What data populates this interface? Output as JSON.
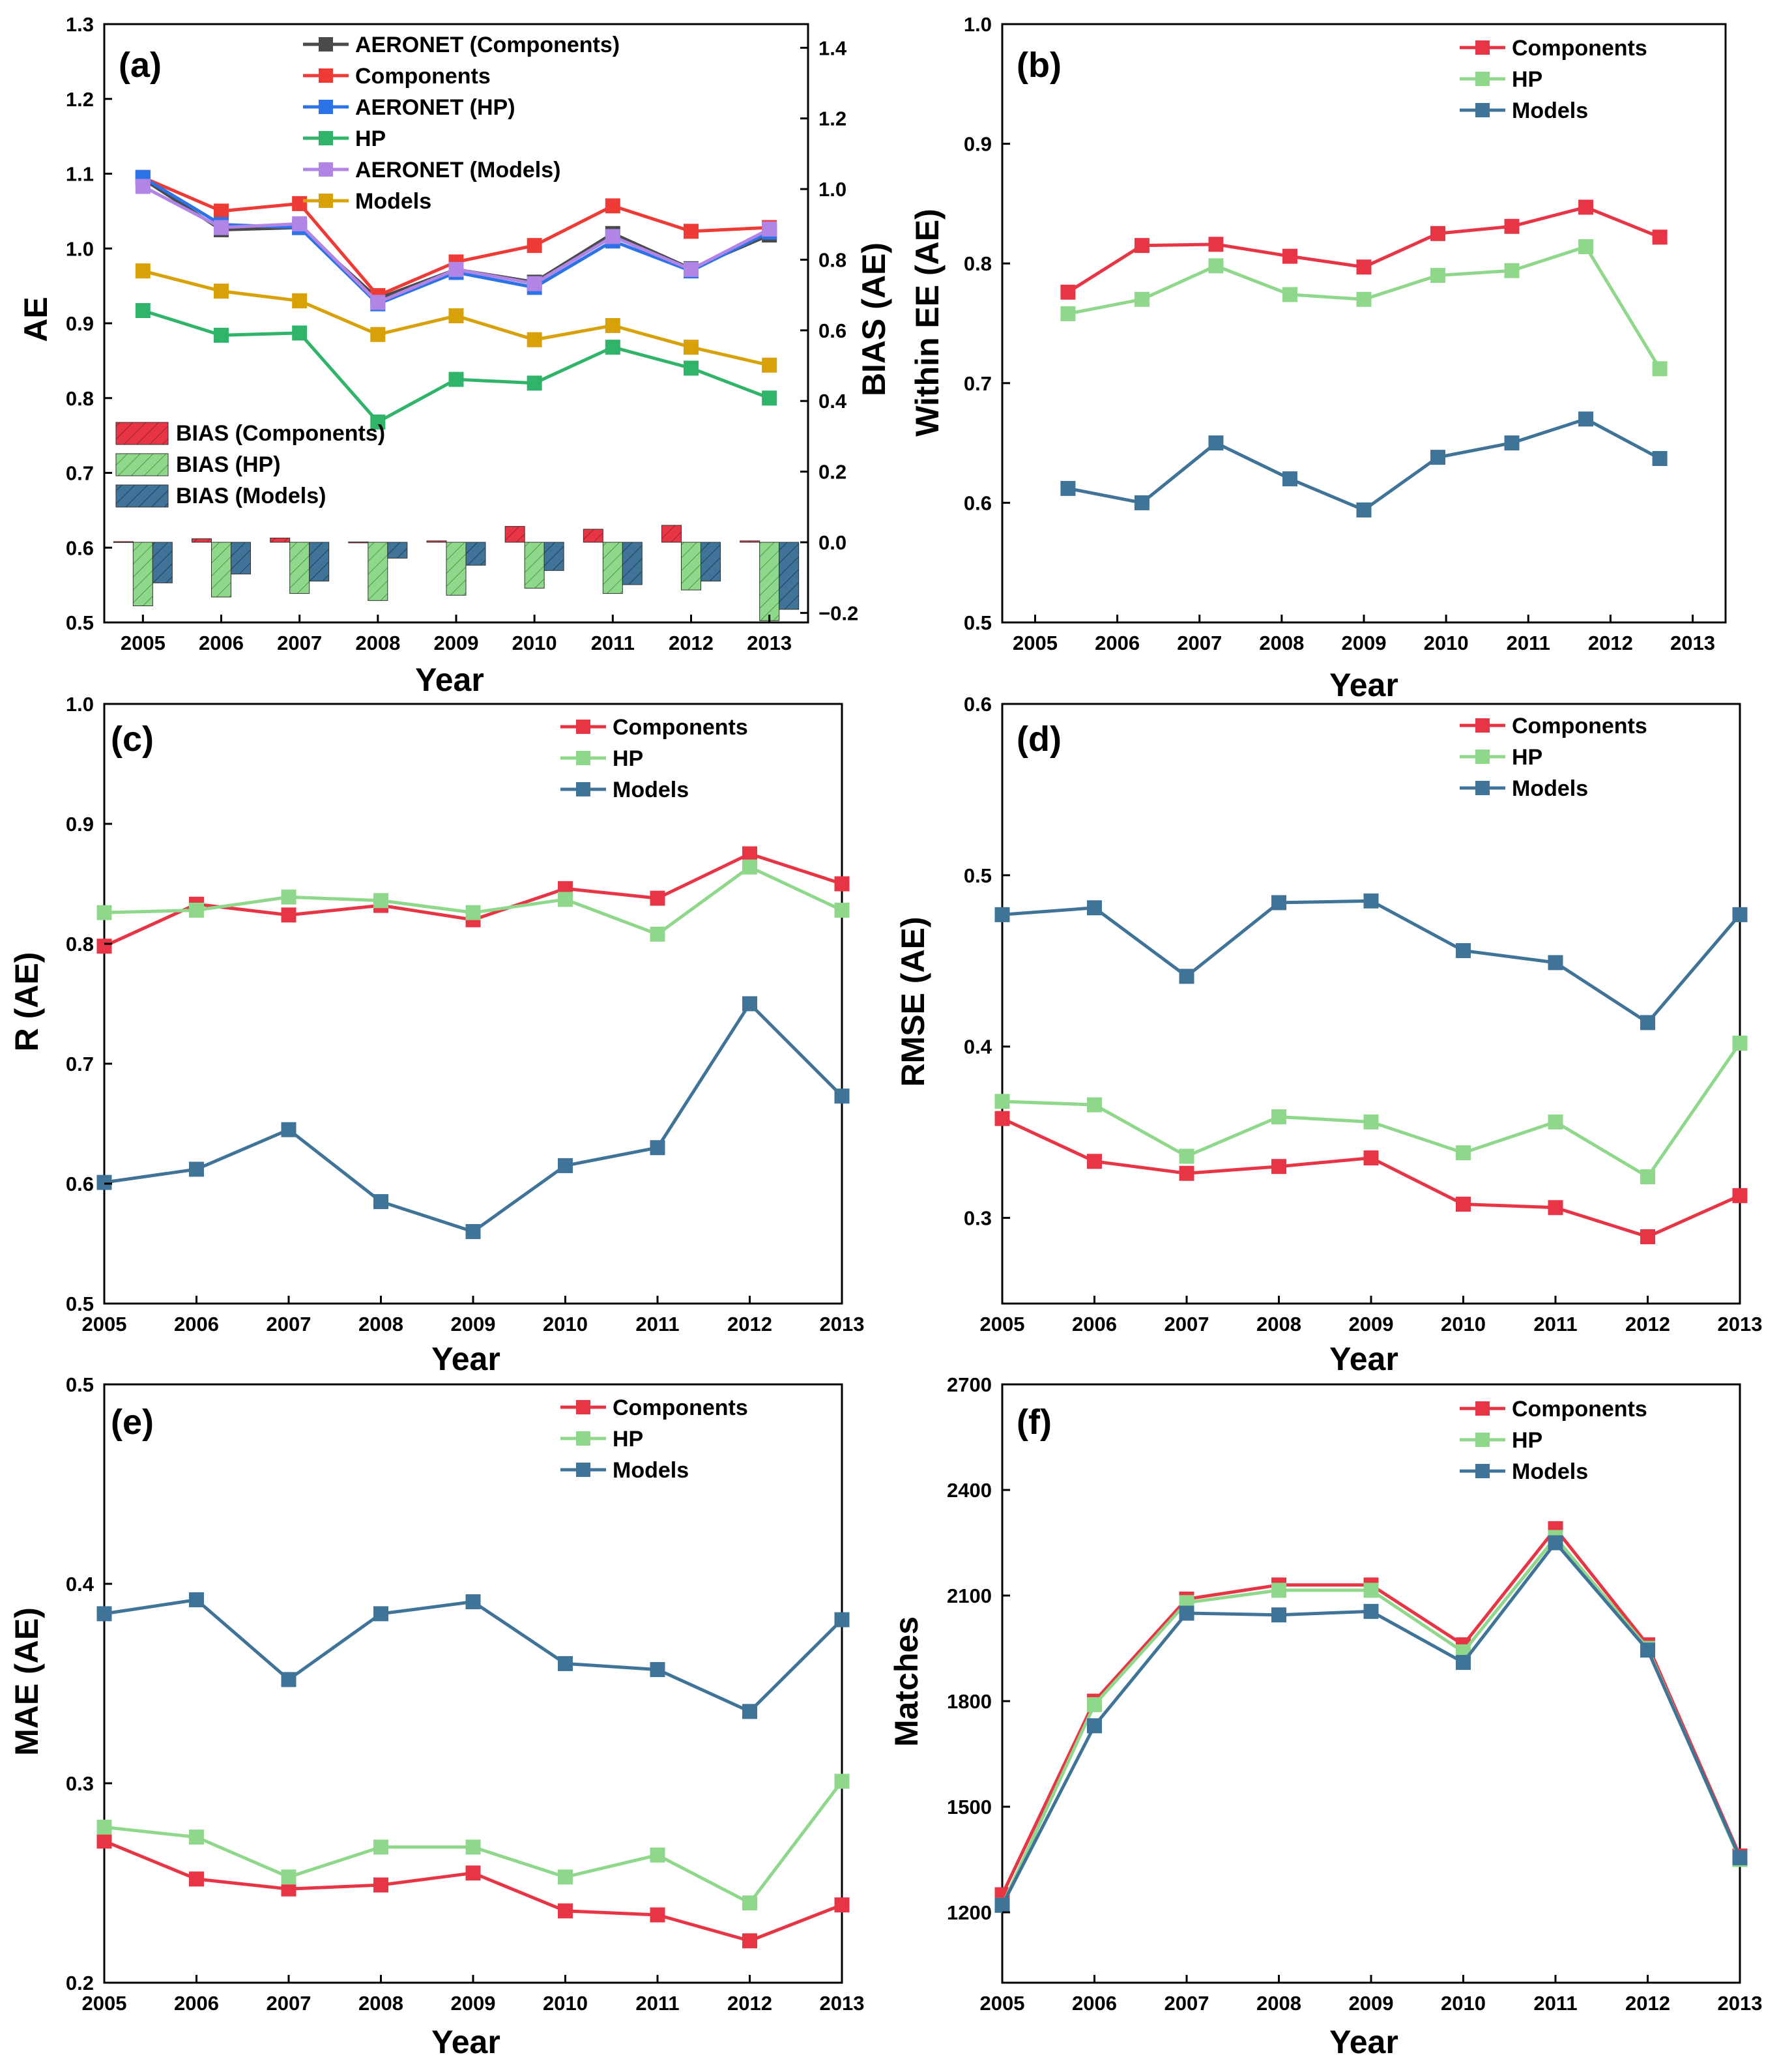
{
  "colors": {
    "components": "#e83545",
    "hp": "#8fd88b",
    "models": "#3f7398",
    "aeronet_components": "#4a4a4a",
    "components_a": "#ef3b36",
    "aeronet_hp": "#2d73e8",
    "hp_a": "#2fb46a",
    "aeronet_models": "#b085e6",
    "models_a": "#d8a107"
  },
  "chart_data": [
    {
      "id": "a",
      "type": "line",
      "label": "(a)",
      "xlabel": "Year",
      "ylabel": "AE",
      "y2label": "BIAS (AE)",
      "categories": [
        "2005",
        "2006",
        "2007",
        "2008",
        "2009",
        "2010",
        "2011",
        "2012",
        "2013"
      ],
      "ylim": [
        0.5,
        1.3
      ],
      "yticks": [
        "0.5",
        "0.6",
        "0.7",
        "0.8",
        "0.9",
        "1.0",
        "1.1",
        "1.2",
        "1.3"
      ],
      "y2lim": [
        -0.227,
        1.467
      ],
      "y2ticks": [
        "−0.2",
        "0.0",
        "0.2",
        "0.4",
        "0.6",
        "0.8",
        "1.0",
        "1.2",
        "1.4"
      ],
      "series": [
        {
          "name": "AERONET (Components)",
          "color": "#4a4a4a",
          "values": [
            1.093,
            1.025,
            1.028,
            0.933,
            0.972,
            0.955,
            1.02,
            0.973,
            1.018
          ]
        },
        {
          "name": "Components",
          "color": "#ef3b36",
          "values": [
            1.095,
            1.05,
            1.06,
            0.937,
            0.982,
            1.004,
            1.057,
            1.023,
            1.028
          ]
        },
        {
          "name": "AERONET (HP)",
          "color": "#2d73e8",
          "values": [
            1.095,
            1.032,
            1.028,
            0.926,
            0.968,
            0.948,
            1.01,
            0.97,
            1.022
          ]
        },
        {
          "name": "HP",
          "color": "#2fb46a",
          "values": [
            0.917,
            0.884,
            0.887,
            0.768,
            0.825,
            0.82,
            0.868,
            0.84,
            0.8
          ]
        },
        {
          "name": "AERONET (Models)",
          "color": "#b085e6",
          "values": [
            1.083,
            1.028,
            1.033,
            0.928,
            0.972,
            0.953,
            1.016,
            0.972,
            1.026
          ]
        },
        {
          "name": "Models",
          "color": "#d8a107",
          "values": [
            0.97,
            0.943,
            0.93,
            0.885,
            0.91,
            0.878,
            0.897,
            0.868,
            0.844
          ]
        }
      ],
      "bias": [
        {
          "name": "BIAS (Components)",
          "color": "#e83545",
          "values": [
            0.002,
            0.01,
            0.012,
            0.001,
            0.004,
            0.045,
            0.037,
            0.048,
            0.004
          ]
        },
        {
          "name": "BIAS (HP)",
          "color": "#8fd88b",
          "values": [
            -0.18,
            -0.155,
            -0.145,
            -0.165,
            -0.15,
            -0.13,
            -0.145,
            -0.135,
            -0.222
          ]
        },
        {
          "name": "BIAS (Models)",
          "color": "#3f7398",
          "values": [
            -0.115,
            -0.09,
            -0.11,
            -0.045,
            -0.065,
            -0.08,
            -0.12,
            -0.11,
            -0.19
          ]
        }
      ]
    },
    {
      "id": "b",
      "type": "line",
      "label": "(b)",
      "xlabel": "Year",
      "ylabel": "Within EE (AE)",
      "categories": [
        "2005",
        "2006",
        "2007",
        "2008",
        "2009",
        "2010",
        "2011",
        "2012",
        "2013"
      ],
      "xlim": [
        2004.6,
        2013.4
      ],
      "ylim": [
        0.5,
        1.0
      ],
      "yticks": [
        "0.5",
        "0.6",
        "0.7",
        "0.8",
        "0.9",
        "1.0"
      ],
      "x": [
        2005.4,
        2006.3,
        2007.2,
        2008.1,
        2009.0,
        2009.9,
        2010.8,
        2011.7,
        2012.6
      ],
      "series": [
        {
          "name": "Components",
          "color": "#e83545",
          "values": [
            0.776,
            0.815,
            0.816,
            0.806,
            0.797,
            0.825,
            0.831,
            0.847,
            0.822
          ]
        },
        {
          "name": "HP",
          "color": "#8fd88b",
          "values": [
            0.758,
            0.77,
            0.798,
            0.774,
            0.77,
            0.79,
            0.794,
            0.814,
            0.712
          ]
        },
        {
          "name": "Models",
          "color": "#3f7398",
          "values": [
            0.612,
            0.6,
            0.65,
            0.62,
            0.594,
            0.638,
            0.65,
            0.67,
            0.637
          ]
        }
      ]
    },
    {
      "id": "c",
      "type": "line",
      "label": "(c)",
      "xlabel": "Year",
      "ylabel": "R (AE)",
      "categories": [
        "2005",
        "2006",
        "2007",
        "2008",
        "2009",
        "2010",
        "2011",
        "2012",
        "2013"
      ],
      "ylim": [
        0.5,
        1.0
      ],
      "yticks": [
        "0.5",
        "0.6",
        "0.7",
        "0.8",
        "0.9",
        "1.0"
      ],
      "series": [
        {
          "name": "Components",
          "color": "#e83545",
          "values": [
            0.798,
            0.833,
            0.824,
            0.832,
            0.82,
            0.846,
            0.838,
            0.875,
            0.85
          ]
        },
        {
          "name": "HP",
          "color": "#8fd88b",
          "values": [
            0.826,
            0.828,
            0.839,
            0.836,
            0.826,
            0.837,
            0.808,
            0.864,
            0.828
          ]
        },
        {
          "name": "Models",
          "color": "#3f7398",
          "values": [
            0.601,
            0.612,
            0.645,
            0.585,
            0.56,
            0.615,
            0.63,
            0.75,
            0.673
          ]
        }
      ]
    },
    {
      "id": "d",
      "type": "line",
      "label": "(d)",
      "xlabel": "Year",
      "ylabel": "RMSE (AE)",
      "categories": [
        "2005",
        "2006",
        "2007",
        "2008",
        "2009",
        "2010",
        "2011",
        "2012",
        "2013"
      ],
      "ylim": [
        0.25,
        0.6
      ],
      "yticks": [
        "0.3",
        "0.4",
        "0.5",
        "0.6"
      ],
      "ytickvals": [
        0.3,
        0.4,
        0.5,
        0.6
      ],
      "series": [
        {
          "name": "Components",
          "color": "#e83545",
          "values": [
            0.358,
            0.333,
            0.326,
            0.33,
            0.335,
            0.308,
            0.306,
            0.289,
            0.313
          ]
        },
        {
          "name": "HP",
          "color": "#8fd88b",
          "values": [
            0.368,
            0.366,
            0.336,
            0.359,
            0.356,
            0.338,
            0.356,
            0.324,
            0.402
          ]
        },
        {
          "name": "Models",
          "color": "#3f7398",
          "values": [
            0.477,
            0.481,
            0.441,
            0.484,
            0.485,
            0.456,
            0.449,
            0.414,
            0.477
          ]
        }
      ]
    },
    {
      "id": "e",
      "type": "line",
      "label": "(e)",
      "xlabel": "Year",
      "ylabel": "MAE (AE)",
      "categories": [
        "2005",
        "2006",
        "2007",
        "2008",
        "2009",
        "2010",
        "2011",
        "2012",
        "2013"
      ],
      "ylim": [
        0.2,
        0.5
      ],
      "yticks": [
        "0.2",
        "0.3",
        "0.4",
        "0.5"
      ],
      "ytickvals": [
        0.2,
        0.3,
        0.4,
        0.5
      ],
      "series": [
        {
          "name": "Components",
          "color": "#e83545",
          "values": [
            0.271,
            0.252,
            0.247,
            0.249,
            0.255,
            0.236,
            0.234,
            0.221,
            0.239
          ]
        },
        {
          "name": "HP",
          "color": "#8fd88b",
          "values": [
            0.278,
            0.273,
            0.253,
            0.268,
            0.268,
            0.253,
            0.264,
            0.24,
            0.301
          ]
        },
        {
          "name": "Models",
          "color": "#3f7398",
          "values": [
            0.385,
            0.392,
            0.352,
            0.385,
            0.391,
            0.36,
            0.357,
            0.336,
            0.382
          ]
        }
      ]
    },
    {
      "id": "f",
      "type": "line",
      "label": "(f)",
      "xlabel": "Year",
      "ylabel": "Matches",
      "categories": [
        "2005",
        "2006",
        "2007",
        "2008",
        "2009",
        "2010",
        "2011",
        "2012",
        "2013"
      ],
      "ylim": [
        1000,
        2700
      ],
      "yticks": [
        "1200",
        "1500",
        "1800",
        "2100",
        "2400",
        "2700"
      ],
      "ytickvals": [
        1200,
        1500,
        1800,
        2100,
        2400,
        2700
      ],
      "series": [
        {
          "name": "Components",
          "color": "#e83545",
          "values": [
            1250,
            1800,
            2090,
            2130,
            2130,
            1960,
            2290,
            1960,
            1360
          ]
        },
        {
          "name": "HP",
          "color": "#8fd88b",
          "values": [
            1220,
            1790,
            2080,
            2115,
            2115,
            1940,
            2265,
            1950,
            1350
          ]
        },
        {
          "name": "Models",
          "color": "#3f7398",
          "values": [
            1220,
            1730,
            2050,
            2045,
            2055,
            1910,
            2250,
            1945,
            1355
          ]
        }
      ]
    }
  ]
}
